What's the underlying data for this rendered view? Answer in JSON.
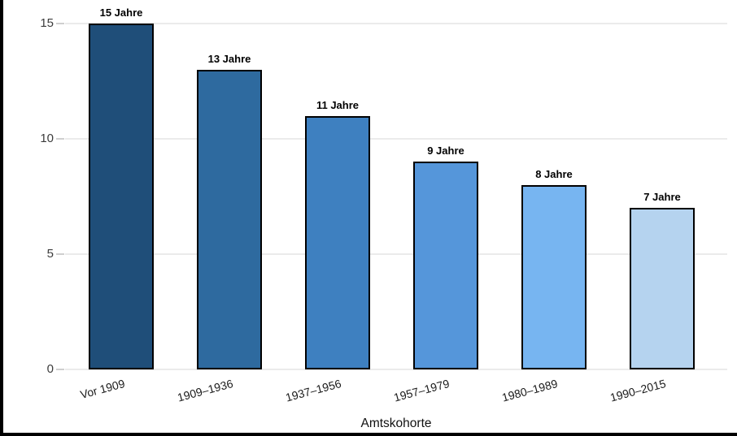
{
  "chart_data": {
    "type": "bar",
    "categories": [
      "Vor 1909",
      "1909–1936",
      "1937–1956",
      "1957–1979",
      "1980–1989",
      "1990–2015"
    ],
    "values": [
      15,
      13,
      11,
      9,
      8,
      7
    ],
    "bar_labels": [
      "15 Jahre",
      "13 Jahre",
      "11 Jahre",
      "9 Jahre",
      "8 Jahre",
      "7 Jahre"
    ],
    "bar_colors": [
      "#1F4E79",
      "#2E6A9F",
      "#3E80C0",
      "#5596DA",
      "#77B5F1",
      "#B5D3EF"
    ],
    "bar_border_color": "#000000",
    "title": "",
    "xlabel": "Amtskohorte",
    "ylabel": "",
    "ylim": [
      0,
      15
    ],
    "yticks": [
      0,
      5,
      10,
      15
    ],
    "ytick_labels": [
      "0",
      "5",
      "10",
      "15"
    ],
    "grid": true,
    "gridline_color": "#ebebeb",
    "legend": "none",
    "text_color": "#1a1a1a"
  }
}
